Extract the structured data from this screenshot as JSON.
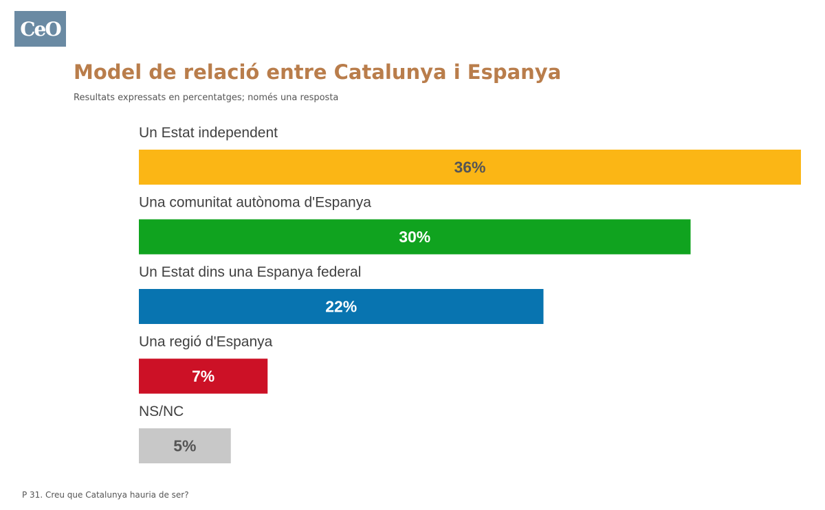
{
  "logo": {
    "text": "CeO"
  },
  "header": {
    "title": "Model de relació entre Catalunya i Espanya",
    "subtitle": "Resultats expressats en percentatges; només una resposta"
  },
  "footnote": "P 31. Creu que Catalunya hauria de ser?",
  "colors": {
    "title": "#b97d4b",
    "bars": [
      "#fbb615",
      "#10a31f",
      "#0874b0",
      "#cc1126",
      "#c8c8c8"
    ],
    "value_text": [
      "#555555",
      "#ffffff",
      "#ffffff",
      "#ffffff",
      "#555555"
    ]
  },
  "chart_data": {
    "type": "bar",
    "orientation": "horizontal",
    "categories": [
      "Un Estat independent",
      "Una comunitat autònoma d'Espanya",
      "Un Estat dins una Espanya federal",
      "Una regió d'Espanya",
      "NS/NC"
    ],
    "values": [
      36,
      30,
      22,
      7,
      5
    ],
    "value_labels": [
      "36%",
      "30%",
      "22%",
      "7%",
      "5%"
    ],
    "unit": "%",
    "xlim": [
      0,
      36
    ],
    "grid": false,
    "legend": "none"
  }
}
